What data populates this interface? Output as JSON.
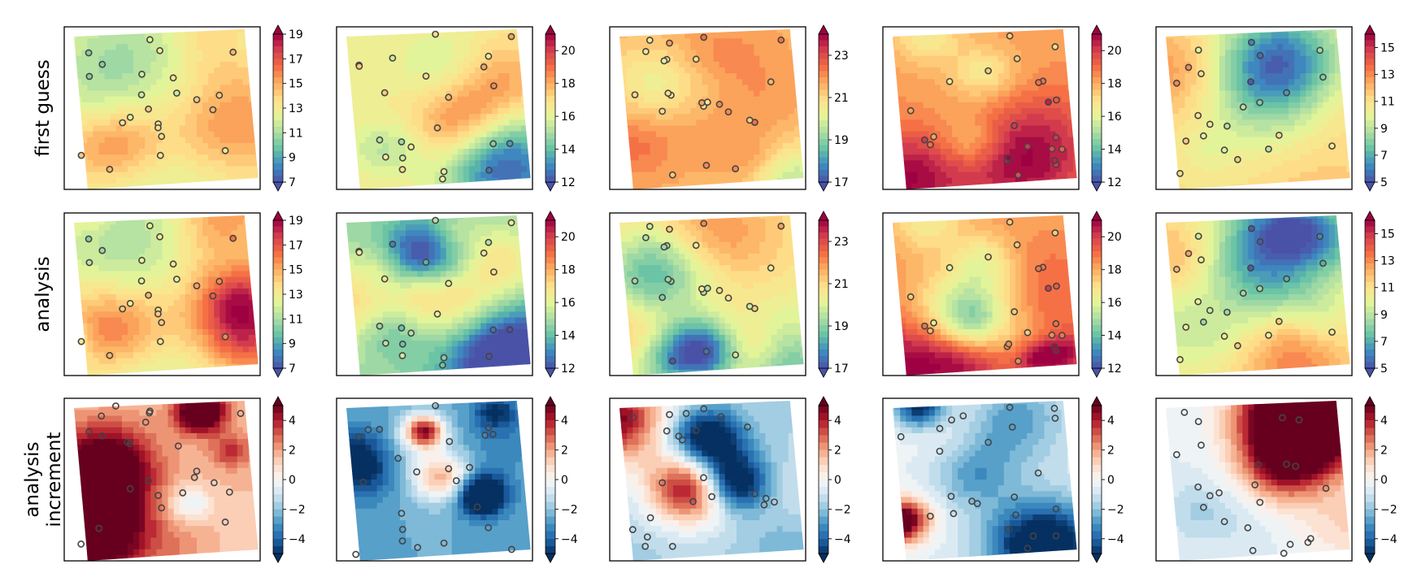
{
  "chart_data": {
    "type": "heatmap",
    "title": "",
    "description_rows": [
      "first guess",
      "analysis",
      "analysis\nincrement"
    ],
    "rows": [
      {
        "label_lines": [
          "first guess"
        ],
        "colormap": "RdYlBu_r",
        "panels": [
          {
            "colorbar": {
              "vmin": 7,
              "vmax": 19,
              "ticks": [
                "7",
                "9",
                "11",
                "13",
                "15",
                "17",
                "19"
              ]
            },
            "field_bias": 0.0
          },
          {
            "colorbar": {
              "vmin": 12,
              "vmax": 21,
              "ticks": [
                "12",
                "14",
                "16",
                "18",
                "20"
              ]
            },
            "field_bias": 0.0
          },
          {
            "colorbar": {
              "vmin": 17,
              "vmax": 24,
              "ticks": [
                "17",
                "19",
                "21",
                "23"
              ]
            },
            "field_bias": 0.15
          },
          {
            "colorbar": {
              "vmin": 12,
              "vmax": 21,
              "ticks": [
                "12",
                "14",
                "16",
                "18",
                "20"
              ]
            },
            "field_bias": 0.2
          },
          {
            "colorbar": {
              "vmin": 5,
              "vmax": 16,
              "ticks": [
                "5",
                "7",
                "9",
                "11",
                "13",
                "15"
              ]
            },
            "field_bias": 0.05
          }
        ]
      },
      {
        "label_lines": [
          "analysis"
        ],
        "colormap": "RdYlBu_r",
        "panels": [
          {
            "colorbar": {
              "vmin": 7,
              "vmax": 19,
              "ticks": [
                "7",
                "9",
                "11",
                "13",
                "15",
                "17",
                "19"
              ]
            },
            "field_bias": 0.0
          },
          {
            "colorbar": {
              "vmin": 12,
              "vmax": 21,
              "ticks": [
                "12",
                "14",
                "16",
                "18",
                "20"
              ]
            },
            "field_bias": -0.2
          },
          {
            "colorbar": {
              "vmin": 17,
              "vmax": 24,
              "ticks": [
                "17",
                "19",
                "21",
                "23"
              ]
            },
            "field_bias": 0.05
          },
          {
            "colorbar": {
              "vmin": 12,
              "vmax": 21,
              "ticks": [
                "12",
                "14",
                "16",
                "18",
                "20"
              ]
            },
            "field_bias": 0.2
          },
          {
            "colorbar": {
              "vmin": 5,
              "vmax": 16,
              "ticks": [
                "5",
                "7",
                "9",
                "11",
                "13",
                "15"
              ]
            },
            "field_bias": 0.0
          }
        ]
      },
      {
        "label_lines": [
          "analysis",
          "increment"
        ],
        "colormap": "RdBu_r",
        "panels": [
          {
            "colorbar": {
              "vmin": -5,
              "vmax": 5,
              "ticks": [
                "4",
                "2",
                "0",
                "−2",
                "−4"
              ]
            },
            "field_bias": 0.15
          },
          {
            "colorbar": {
              "vmin": -5,
              "vmax": 5,
              "ticks": [
                "4",
                "2",
                "0",
                "−2",
                "−4"
              ]
            },
            "field_bias": -0.25
          },
          {
            "colorbar": {
              "vmin": -5,
              "vmax": 5,
              "ticks": [
                "4",
                "2",
                "0",
                "−2",
                "−4"
              ]
            },
            "field_bias": -0.15
          },
          {
            "colorbar": {
              "vmin": -5,
              "vmax": 5,
              "ticks": [
                "4",
                "2",
                "0",
                "−2",
                "−4"
              ]
            },
            "field_bias": -0.05
          },
          {
            "colorbar": {
              "vmin": -5,
              "vmax": 5,
              "ticks": [
                "4",
                "2",
                "0",
                "−2",
                "−4"
              ]
            },
            "field_bias": -0.05
          }
        ]
      }
    ],
    "observation_stations_per_panel": 23,
    "colors": {
      "sequential": [
        "#4a52a8",
        "#3d8ac0",
        "#66c2a5",
        "#abdda4",
        "#e6f598",
        "#fee08b",
        "#fdae61",
        "#f46d43",
        "#d53e4f",
        "#9e0142"
      ],
      "diverging": [
        "#053061",
        "#2166ac",
        "#4393c3",
        "#92c5de",
        "#d1e5f0",
        "#f7f7f7",
        "#fddbc7",
        "#f4a582",
        "#d6604d",
        "#b2182b",
        "#67001f"
      ],
      "marker_edge": "#444444"
    }
  }
}
